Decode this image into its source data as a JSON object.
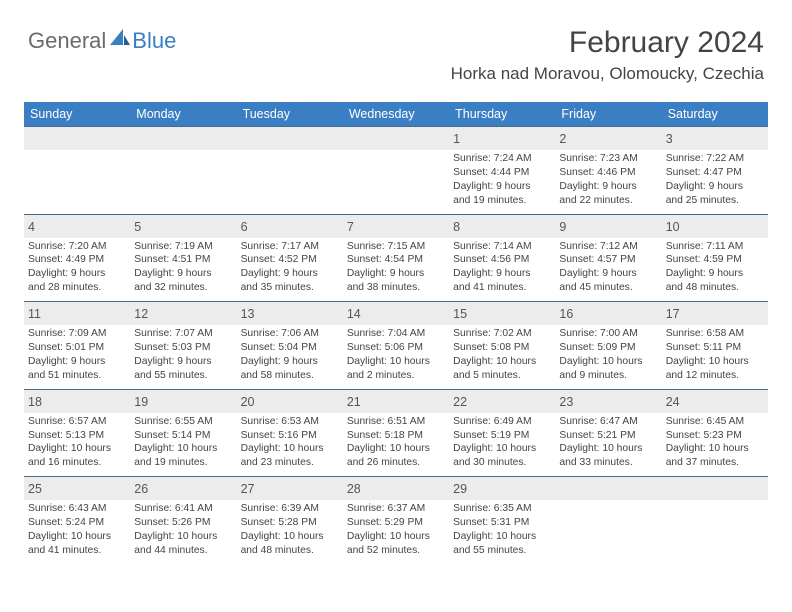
{
  "logo": {
    "general": "General",
    "blue": "Blue"
  },
  "title": {
    "month_year": "February 2024",
    "location": "Horka nad Moravou, Olomoucky, Czechia"
  },
  "colors": {
    "header_bg": "#3a7fc4",
    "header_text": "#ffffff",
    "daynum_bg": "#ececec",
    "week_border": "#4a6a8a",
    "body_text": "#444444",
    "logo_gray": "#6b6b6b",
    "logo_blue": "#3a7fc4"
  },
  "days_of_week": [
    "Sunday",
    "Monday",
    "Tuesday",
    "Wednesday",
    "Thursday",
    "Friday",
    "Saturday"
  ],
  "weeks": [
    [
      null,
      null,
      null,
      null,
      {
        "n": "1",
        "sr": "Sunrise: 7:24 AM",
        "ss": "Sunset: 4:44 PM",
        "d1": "Daylight: 9 hours",
        "d2": "and 19 minutes."
      },
      {
        "n": "2",
        "sr": "Sunrise: 7:23 AM",
        "ss": "Sunset: 4:46 PM",
        "d1": "Daylight: 9 hours",
        "d2": "and 22 minutes."
      },
      {
        "n": "3",
        "sr": "Sunrise: 7:22 AM",
        "ss": "Sunset: 4:47 PM",
        "d1": "Daylight: 9 hours",
        "d2": "and 25 minutes."
      }
    ],
    [
      {
        "n": "4",
        "sr": "Sunrise: 7:20 AM",
        "ss": "Sunset: 4:49 PM",
        "d1": "Daylight: 9 hours",
        "d2": "and 28 minutes."
      },
      {
        "n": "5",
        "sr": "Sunrise: 7:19 AM",
        "ss": "Sunset: 4:51 PM",
        "d1": "Daylight: 9 hours",
        "d2": "and 32 minutes."
      },
      {
        "n": "6",
        "sr": "Sunrise: 7:17 AM",
        "ss": "Sunset: 4:52 PM",
        "d1": "Daylight: 9 hours",
        "d2": "and 35 minutes."
      },
      {
        "n": "7",
        "sr": "Sunrise: 7:15 AM",
        "ss": "Sunset: 4:54 PM",
        "d1": "Daylight: 9 hours",
        "d2": "and 38 minutes."
      },
      {
        "n": "8",
        "sr": "Sunrise: 7:14 AM",
        "ss": "Sunset: 4:56 PM",
        "d1": "Daylight: 9 hours",
        "d2": "and 41 minutes."
      },
      {
        "n": "9",
        "sr": "Sunrise: 7:12 AM",
        "ss": "Sunset: 4:57 PM",
        "d1": "Daylight: 9 hours",
        "d2": "and 45 minutes."
      },
      {
        "n": "10",
        "sr": "Sunrise: 7:11 AM",
        "ss": "Sunset: 4:59 PM",
        "d1": "Daylight: 9 hours",
        "d2": "and 48 minutes."
      }
    ],
    [
      {
        "n": "11",
        "sr": "Sunrise: 7:09 AM",
        "ss": "Sunset: 5:01 PM",
        "d1": "Daylight: 9 hours",
        "d2": "and 51 minutes."
      },
      {
        "n": "12",
        "sr": "Sunrise: 7:07 AM",
        "ss": "Sunset: 5:03 PM",
        "d1": "Daylight: 9 hours",
        "d2": "and 55 minutes."
      },
      {
        "n": "13",
        "sr": "Sunrise: 7:06 AM",
        "ss": "Sunset: 5:04 PM",
        "d1": "Daylight: 9 hours",
        "d2": "and 58 minutes."
      },
      {
        "n": "14",
        "sr": "Sunrise: 7:04 AM",
        "ss": "Sunset: 5:06 PM",
        "d1": "Daylight: 10 hours",
        "d2": "and 2 minutes."
      },
      {
        "n": "15",
        "sr": "Sunrise: 7:02 AM",
        "ss": "Sunset: 5:08 PM",
        "d1": "Daylight: 10 hours",
        "d2": "and 5 minutes."
      },
      {
        "n": "16",
        "sr": "Sunrise: 7:00 AM",
        "ss": "Sunset: 5:09 PM",
        "d1": "Daylight: 10 hours",
        "d2": "and 9 minutes."
      },
      {
        "n": "17",
        "sr": "Sunrise: 6:58 AM",
        "ss": "Sunset: 5:11 PM",
        "d1": "Daylight: 10 hours",
        "d2": "and 12 minutes."
      }
    ],
    [
      {
        "n": "18",
        "sr": "Sunrise: 6:57 AM",
        "ss": "Sunset: 5:13 PM",
        "d1": "Daylight: 10 hours",
        "d2": "and 16 minutes."
      },
      {
        "n": "19",
        "sr": "Sunrise: 6:55 AM",
        "ss": "Sunset: 5:14 PM",
        "d1": "Daylight: 10 hours",
        "d2": "and 19 minutes."
      },
      {
        "n": "20",
        "sr": "Sunrise: 6:53 AM",
        "ss": "Sunset: 5:16 PM",
        "d1": "Daylight: 10 hours",
        "d2": "and 23 minutes."
      },
      {
        "n": "21",
        "sr": "Sunrise: 6:51 AM",
        "ss": "Sunset: 5:18 PM",
        "d1": "Daylight: 10 hours",
        "d2": "and 26 minutes."
      },
      {
        "n": "22",
        "sr": "Sunrise: 6:49 AM",
        "ss": "Sunset: 5:19 PM",
        "d1": "Daylight: 10 hours",
        "d2": "and 30 minutes."
      },
      {
        "n": "23",
        "sr": "Sunrise: 6:47 AM",
        "ss": "Sunset: 5:21 PM",
        "d1": "Daylight: 10 hours",
        "d2": "and 33 minutes."
      },
      {
        "n": "24",
        "sr": "Sunrise: 6:45 AM",
        "ss": "Sunset: 5:23 PM",
        "d1": "Daylight: 10 hours",
        "d2": "and 37 minutes."
      }
    ],
    [
      {
        "n": "25",
        "sr": "Sunrise: 6:43 AM",
        "ss": "Sunset: 5:24 PM",
        "d1": "Daylight: 10 hours",
        "d2": "and 41 minutes."
      },
      {
        "n": "26",
        "sr": "Sunrise: 6:41 AM",
        "ss": "Sunset: 5:26 PM",
        "d1": "Daylight: 10 hours",
        "d2": "and 44 minutes."
      },
      {
        "n": "27",
        "sr": "Sunrise: 6:39 AM",
        "ss": "Sunset: 5:28 PM",
        "d1": "Daylight: 10 hours",
        "d2": "and 48 minutes."
      },
      {
        "n": "28",
        "sr": "Sunrise: 6:37 AM",
        "ss": "Sunset: 5:29 PM",
        "d1": "Daylight: 10 hours",
        "d2": "and 52 minutes."
      },
      {
        "n": "29",
        "sr": "Sunrise: 6:35 AM",
        "ss": "Sunset: 5:31 PM",
        "d1": "Daylight: 10 hours",
        "d2": "and 55 minutes."
      },
      null,
      null
    ]
  ]
}
